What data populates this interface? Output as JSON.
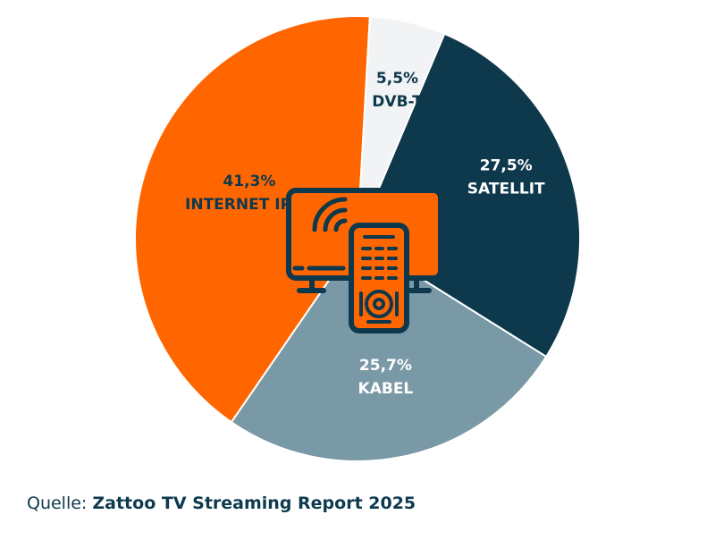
{
  "chart_data": {
    "type": "pie",
    "start_angle_deg": -67,
    "direction": "clockwise",
    "center_icon": "tv-with-remote-icon",
    "slices": [
      {
        "name": "SATELLIT",
        "value": 27.5,
        "label": "27,5%",
        "color": "#0e384c",
        "text_color": "#ffffff"
      },
      {
        "name": "KABEL",
        "value": 25.7,
        "label": "25,7%",
        "color": "#7a99a6",
        "text_color": "#ffffff"
      },
      {
        "name": "INTERNET IPTV",
        "value": 41.3,
        "label": "41,3%",
        "color": "#ff6600",
        "text_color": "#0e384c"
      },
      {
        "name": "DVB-T",
        "value": 5.5,
        "label": "5,5%",
        "color": "#f2f3f5",
        "text_color": "#0e384c"
      }
    ]
  },
  "source": {
    "prefix": "Quelle: ",
    "title": "Zattoo TV Streaming Report 2025"
  },
  "colors": {
    "icon_fill": "#ff6600",
    "icon_stroke": "#0e384c",
    "source_text": "#0d3a4e"
  }
}
